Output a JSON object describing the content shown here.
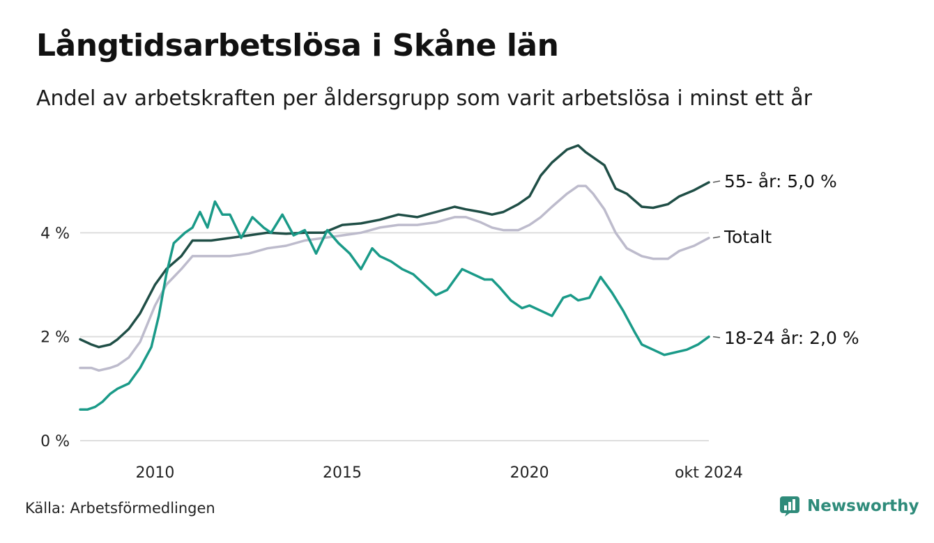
{
  "header": {
    "title": "Långtidsarbetslösa i Skåne län",
    "subtitle": "Andel av arbetskraften per åldersgrupp som varit arbetslösa i minst ett år"
  },
  "footer": {
    "source": "Källa: Arbetsförmedlingen",
    "brand": "Newsworthy",
    "brand_icon": "newsworthy-logo-icon"
  },
  "colors": {
    "s55": "#1f4e46",
    "total": "#bdbbcc",
    "young": "#1a9a88",
    "grid": "#dddddd",
    "brand": "#2e8b7a"
  },
  "chart_data": {
    "type": "line",
    "title": "Långtidsarbetslösa i Skåne län",
    "xlabel": "",
    "ylabel": "",
    "xlim": [
      2008.0,
      2024.79
    ],
    "ylim": [
      0,
      6
    ],
    "y_ticks": [
      0,
      2,
      4
    ],
    "y_tick_labels": [
      "0 %",
      "2 %",
      "4 %"
    ],
    "x_ticks": [
      2010,
      2015,
      2020,
      2024.79
    ],
    "x_tick_labels": [
      "2010",
      "2015",
      "2020",
      "okt 2024"
    ],
    "grid": true,
    "series": [
      {
        "key": "s55",
        "label": "55- år: 5,0 %",
        "x": [
          2008.0,
          2008.3,
          2008.5,
          2008.8,
          2009.0,
          2009.3,
          2009.6,
          2010.0,
          2010.3,
          2010.7,
          2011.0,
          2011.5,
          2012.0,
          2012.5,
          2013.0,
          2013.5,
          2014.0,
          2014.5,
          2015.0,
          2015.5,
          2016.0,
          2016.5,
          2017.0,
          2017.5,
          2018.0,
          2018.3,
          2018.7,
          2019.0,
          2019.3,
          2019.7,
          2020.0,
          2020.3,
          2020.6,
          2021.0,
          2021.3,
          2021.5,
          2021.7,
          2022.0,
          2022.3,
          2022.6,
          2023.0,
          2023.3,
          2023.7,
          2024.0,
          2024.4,
          2024.79
        ],
        "y": [
          1.95,
          1.85,
          1.8,
          1.85,
          1.95,
          2.15,
          2.45,
          3.0,
          3.3,
          3.55,
          3.85,
          3.85,
          3.9,
          3.95,
          4.0,
          3.98,
          4.0,
          4.0,
          4.15,
          4.18,
          4.25,
          4.35,
          4.3,
          4.4,
          4.5,
          4.45,
          4.4,
          4.35,
          4.4,
          4.55,
          4.7,
          5.1,
          5.35,
          5.6,
          5.68,
          5.55,
          5.45,
          5.3,
          4.85,
          4.75,
          4.5,
          4.48,
          4.55,
          4.7,
          4.82,
          4.97
        ]
      },
      {
        "key": "total",
        "label": "Totalt",
        "x": [
          2008.0,
          2008.3,
          2008.5,
          2008.8,
          2009.0,
          2009.3,
          2009.6,
          2010.0,
          2010.3,
          2010.7,
          2011.0,
          2011.5,
          2012.0,
          2012.5,
          2013.0,
          2013.5,
          2014.0,
          2014.5,
          2015.0,
          2015.5,
          2016.0,
          2016.5,
          2017.0,
          2017.5,
          2018.0,
          2018.3,
          2018.7,
          2019.0,
          2019.3,
          2019.7,
          2020.0,
          2020.3,
          2020.6,
          2021.0,
          2021.3,
          2021.5,
          2021.7,
          2022.0,
          2022.3,
          2022.6,
          2023.0,
          2023.3,
          2023.7,
          2024.0,
          2024.4,
          2024.79
        ],
        "y": [
          1.4,
          1.4,
          1.35,
          1.4,
          1.45,
          1.6,
          1.9,
          2.6,
          3.0,
          3.3,
          3.55,
          3.55,
          3.55,
          3.6,
          3.7,
          3.75,
          3.85,
          3.9,
          3.95,
          4.0,
          4.1,
          4.15,
          4.15,
          4.2,
          4.3,
          4.3,
          4.2,
          4.1,
          4.05,
          4.05,
          4.15,
          4.3,
          4.5,
          4.75,
          4.9,
          4.9,
          4.75,
          4.45,
          4.0,
          3.7,
          3.55,
          3.5,
          3.5,
          3.65,
          3.75,
          3.9
        ]
      },
      {
        "key": "young",
        "label": "18-24 år: 2,0 %",
        "x": [
          2008.0,
          2008.2,
          2008.4,
          2008.6,
          2008.8,
          2009.0,
          2009.3,
          2009.6,
          2009.9,
          2010.1,
          2010.3,
          2010.5,
          2010.8,
          2011.0,
          2011.2,
          2011.4,
          2011.6,
          2011.8,
          2012.0,
          2012.3,
          2012.6,
          2012.9,
          2013.1,
          2013.4,
          2013.7,
          2014.0,
          2014.3,
          2014.6,
          2014.9,
          2015.2,
          2015.5,
          2015.8,
          2016.0,
          2016.3,
          2016.6,
          2016.9,
          2017.2,
          2017.5,
          2017.8,
          2018.0,
          2018.2,
          2018.5,
          2018.8,
          2019.0,
          2019.2,
          2019.5,
          2019.8,
          2020.0,
          2020.3,
          2020.6,
          2020.9,
          2021.1,
          2021.3,
          2021.6,
          2021.9,
          2022.2,
          2022.5,
          2022.8,
          2023.0,
          2023.3,
          2023.6,
          2023.9,
          2024.2,
          2024.5,
          2024.79
        ],
        "y": [
          0.6,
          0.6,
          0.65,
          0.75,
          0.9,
          1.0,
          1.1,
          1.4,
          1.8,
          2.4,
          3.2,
          3.8,
          4.0,
          4.1,
          4.4,
          4.1,
          4.6,
          4.35,
          4.35,
          3.9,
          4.3,
          4.1,
          4.0,
          4.35,
          3.95,
          4.05,
          3.6,
          4.05,
          3.8,
          3.6,
          3.3,
          3.7,
          3.55,
          3.45,
          3.3,
          3.2,
          3.0,
          2.8,
          2.9,
          3.1,
          3.3,
          3.2,
          3.1,
          3.1,
          2.95,
          2.7,
          2.55,
          2.6,
          2.5,
          2.4,
          2.75,
          2.8,
          2.7,
          2.75,
          3.15,
          2.85,
          2.5,
          2.1,
          1.85,
          1.75,
          1.65,
          1.7,
          1.75,
          1.85,
          2.0
        ]
      }
    ]
  }
}
